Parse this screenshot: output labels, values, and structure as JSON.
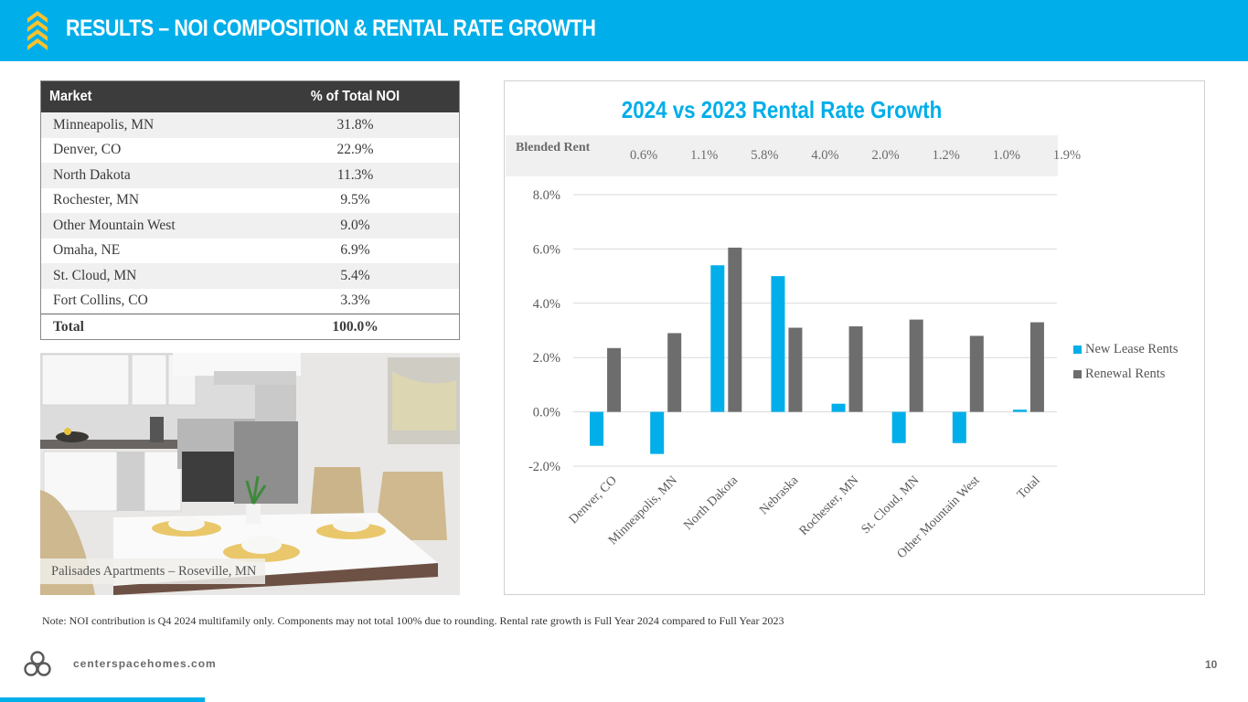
{
  "header": {
    "title": "RESULTS – NOI COMPOSITION & RENTAL RATE GROWTH",
    "icon": "chevrons-up-icon",
    "colors": {
      "band": "#00aee9",
      "icon": "#f6c22d"
    }
  },
  "noi_table": {
    "columns": [
      "Market",
      "% of Total NOI"
    ],
    "rows": [
      {
        "market": "Minneapolis, MN",
        "pct": "31.8%"
      },
      {
        "market": "Denver, CO",
        "pct": "22.9%"
      },
      {
        "market": "North Dakota",
        "pct": "11.3%"
      },
      {
        "market": "Rochester, MN",
        "pct": "9.5%"
      },
      {
        "market": "Other Mountain West",
        "pct": "9.0%"
      },
      {
        "market": "Omaha, NE",
        "pct": "6.9%"
      },
      {
        "market": "St. Cloud, MN",
        "pct": "5.4%"
      },
      {
        "market": "Fort Collins, CO",
        "pct": "3.3%"
      }
    ],
    "total": {
      "label": "Total",
      "pct": "100.0%"
    }
  },
  "photo": {
    "caption": "Palisades Apartments – Roseville, MN",
    "subject": "kitchen-dining-interior"
  },
  "chart_data": {
    "type": "bar",
    "title": "2024 vs 2023 Rental Rate Growth",
    "categories": [
      "Denver, CO",
      "Minneapolis, MN",
      "North Dakota",
      "Nebraska",
      "Rochester, MN",
      "St. Cloud, MN",
      "Other Mountain West",
      "Total"
    ],
    "series": [
      {
        "name": "New Lease Rents",
        "color": "#00aee9",
        "values": [
          -1.25,
          -1.55,
          5.4,
          5.0,
          0.3,
          -1.15,
          -1.15,
          0.08
        ]
      },
      {
        "name": "Renewal Rents",
        "color": "#6d6d6d",
        "values": [
          2.35,
          2.9,
          6.05,
          3.1,
          3.15,
          3.4,
          2.8,
          3.3
        ]
      }
    ],
    "blended_rent": {
      "label": "Blended Rent",
      "values": [
        "0.6%",
        "1.1%",
        "5.8%",
        "4.0%",
        "2.0%",
        "1.2%",
        "1.0%",
        "1.9%"
      ]
    },
    "yticks": [
      -2.0,
      0.0,
      2.0,
      4.0,
      6.0,
      8.0
    ],
    "ytick_labels": [
      "-2.0%",
      "0.0%",
      "2.0%",
      "4.0%",
      "6.0%",
      "8.0%"
    ],
    "ylim": [
      -2.0,
      8.0
    ],
    "xlabel": "",
    "ylabel": "",
    "grid": true,
    "legend_position": "right"
  },
  "note": "Note: NOI contribution is Q4 2024 multifamily only. Components may not total 100% due to rounding. Rental rate growth is Full Year 2024 compared to Full Year 2023",
  "footer": {
    "url": "centerspacehomes.com",
    "page": "10",
    "logo": "centerspace-logo-icon"
  }
}
